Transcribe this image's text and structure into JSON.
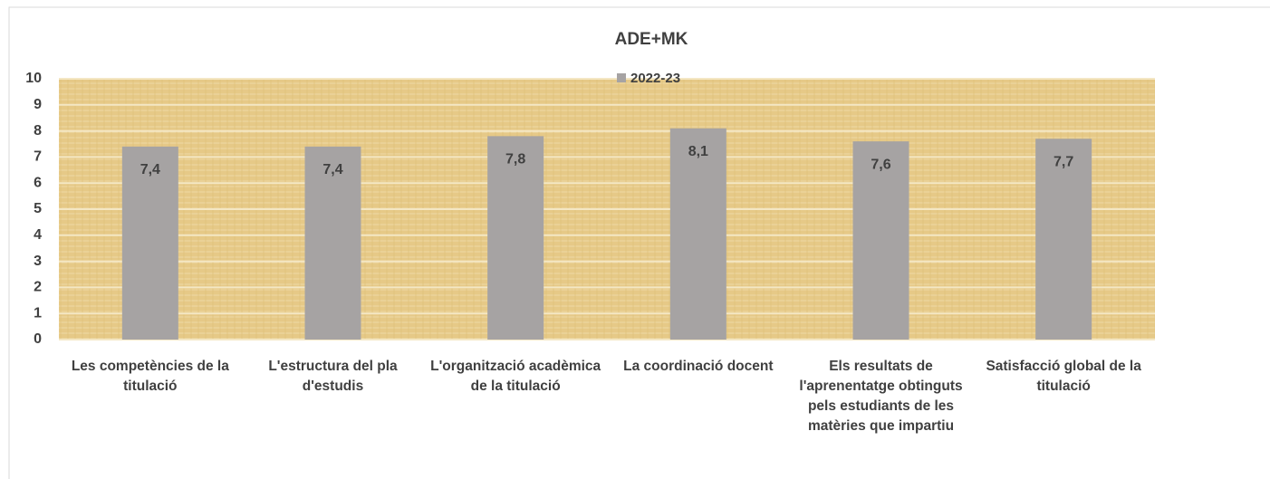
{
  "chart_data": {
    "type": "bar",
    "title": "ADE+MK",
    "categories": [
      "Les competències de la titulació",
      "L'estructura del pla d'estudis",
      "L'organització acadèmica de la titulació",
      "La coordinació docent",
      "Els resultats de l'aprenentatge obtinguts pels estudiants de les matèries que impartiu",
      "Satisfacció global de la titulació"
    ],
    "series": [
      {
        "name": "2022-23",
        "color": "#a6a3a3",
        "values": [
          7.4,
          7.4,
          7.8,
          8.1,
          7.6,
          7.7
        ],
        "value_labels": [
          "7,4",
          "7,4",
          "7,8",
          "8,1",
          "7,6",
          "7,7"
        ]
      }
    ],
    "ylim": [
      0,
      10
    ],
    "yticks": [
      0,
      1,
      2,
      3,
      4,
      5,
      6,
      7,
      8,
      9,
      10
    ],
    "grid": true,
    "legend": "top"
  }
}
